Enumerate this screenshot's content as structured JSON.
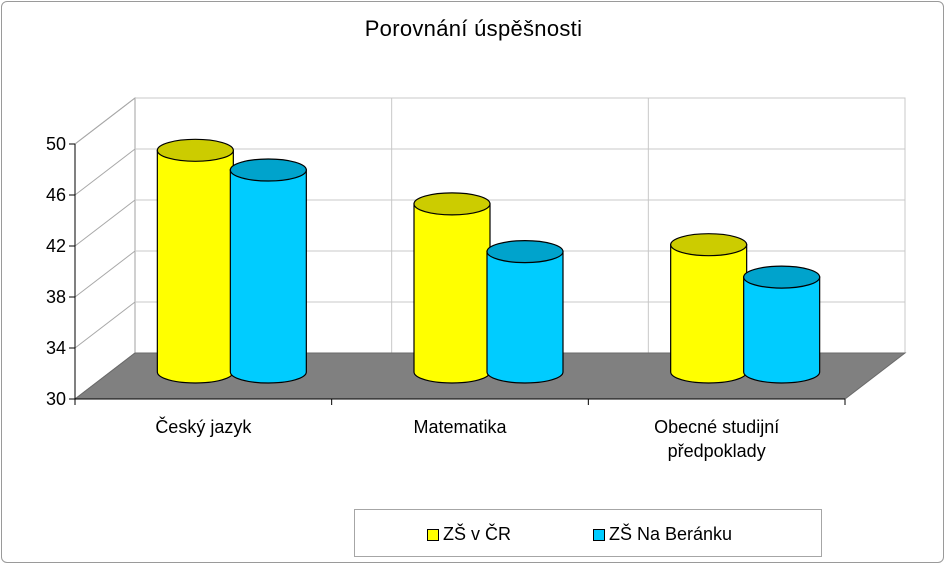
{
  "chart_data": {
    "type": "bar",
    "title": "Porovnání úspěšnosti",
    "categories": [
      "Český jazyk",
      "Matematika",
      "Obecné studijní předpoklady"
    ],
    "category_lines": [
      [
        "Český jazyk"
      ],
      [
        "Matematika"
      ],
      [
        "Obecné studijní",
        "předpoklady"
      ]
    ],
    "series": [
      {
        "name": "ZŠ v ČR",
        "values": [
          47.7,
          43.5,
          40.3
        ],
        "color": "#ffff00"
      },
      {
        "name": "ZŠ Na Beránku",
        "values": [
          46.0,
          39.6,
          37.6
        ],
        "color": "#00ccff"
      }
    ],
    "ylim": [
      30,
      50
    ],
    "yticks": [
      30,
      34,
      38,
      42,
      46,
      50
    ],
    "grid": true,
    "legend_position": "bottom",
    "floor_color": "#808080",
    "style": "3d-cylinder"
  }
}
